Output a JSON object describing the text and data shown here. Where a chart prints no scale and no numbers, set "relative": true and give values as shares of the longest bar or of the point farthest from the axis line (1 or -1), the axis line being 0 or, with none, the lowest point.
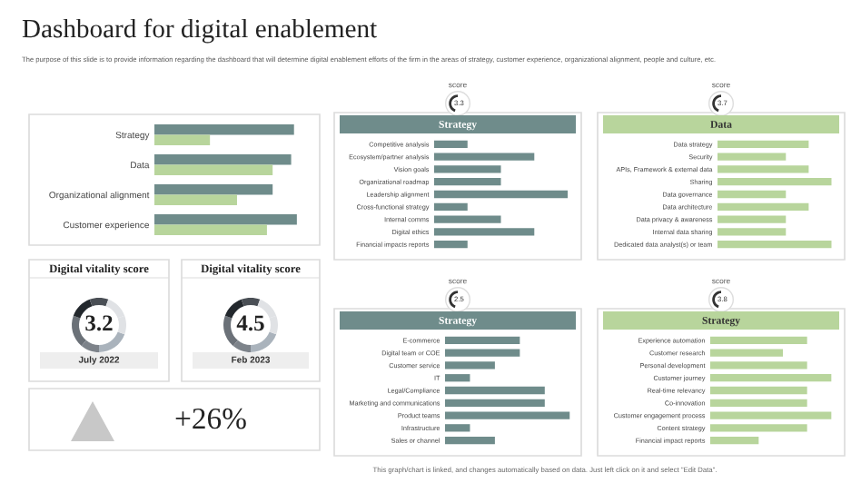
{
  "chart_data": [
    {
      "type": "other",
      "title": "Dashboard for digital enablement",
      "subtitle": "The purpose of this slide is to provide information regarding the dashboard that will determine digital enablement efforts of the firm in the areas of strategy, customer experience, organizational alignment, people and culture, etc.",
      "annotations": [
        "This graph/chart is linked, and changes automatically based on data. Just left click on it and select \"Edit Data\"."
      ]
    },
    {
      "type": "bar",
      "orientation": "horizontal",
      "relative": true,
      "categories": [
        "Strategy",
        "Data",
        "Organizational alignment",
        "Customer experience"
      ],
      "series": [
        {
          "color": "#6f8c8b",
          "values": [
            0.98,
            0.96,
            0.83,
            1
          ]
        },
        {
          "color": "#b8d59c",
          "values": [
            0.39,
            0.83,
            0.58,
            0.79
          ]
        }
      ]
    },
    {
      "type": "other",
      "title": "Digital vitality score",
      "annotations": [
        "3.2",
        "July 2022"
      ]
    },
    {
      "type": "other",
      "title": "Digital vitality score",
      "annotations": [
        "4.5",
        "Feb 2023"
      ]
    },
    {
      "type": "other",
      "annotations": [
        "+26%"
      ]
    },
    {
      "type": "bar",
      "orientation": "horizontal",
      "relative": true,
      "title": "Strategy",
      "annotations": [
        "score",
        "3.3"
      ],
      "categories": [
        "Competitive analysis",
        "Ecosystem/partner analysis",
        "Vision goals",
        "Organizational roadmap",
        "Leadership alignment",
        "Cross-functional strategy",
        "Internal comms",
        "Digital ethics",
        "Financial impacts reports"
      ],
      "series": [
        {
          "color": "#6f8c8b",
          "values": [
            0.25,
            0.75,
            0.5,
            0.5,
            1,
            0.25,
            0.5,
            0.75,
            0.25
          ]
        }
      ]
    },
    {
      "type": "bar",
      "orientation": "horizontal",
      "relative": true,
      "title": "Data",
      "annotations": [
        "score",
        "3.7"
      ],
      "categories": [
        "Data strategy",
        "Security",
        "APIs, Framework & external data",
        "Sharing",
        "Data governance",
        "Data architecture",
        "Data privacy & awareness",
        "Internal data sharing",
        "Dedicated data analyst(s) or team"
      ],
      "series": [
        {
          "color": "#b8d59c",
          "values": [
            0.8,
            0.6,
            0.8,
            1,
            0.6,
            0.8,
            0.6,
            0.6,
            1
          ]
        }
      ]
    },
    {
      "type": "bar",
      "orientation": "horizontal",
      "relative": true,
      "title": "Strategy",
      "annotations": [
        "score",
        "2.5"
      ],
      "categories": [
        "E-commerce",
        "Digital team or COE",
        "Customer service",
        "IT",
        "Legal/Compliance",
        "Marketing and communications",
        "Product teams",
        "Infrastructure",
        "Sales or channel"
      ],
      "series": [
        {
          "color": "#6f8c8b",
          "values": [
            0.6,
            0.6,
            0.4,
            0.2,
            0.8,
            0.8,
            1,
            0.2,
            0.4
          ]
        }
      ]
    },
    {
      "type": "bar",
      "orientation": "horizontal",
      "relative": true,
      "title": "Strategy",
      "annotations": [
        "score",
        "3.8"
      ],
      "categories": [
        "Experience automation",
        "Customer research",
        "Personal development",
        "Customer journey",
        "Real-time relevancy",
        "Co-innovation",
        "Customer engagement process",
        "Content strategy",
        "Financial impact reports"
      ],
      "series": [
        {
          "color": "#b8d59c",
          "values": [
            0.8,
            0.6,
            0.8,
            1,
            0.8,
            0.8,
            1,
            0.8,
            0.4
          ]
        }
      ]
    }
  ]
}
